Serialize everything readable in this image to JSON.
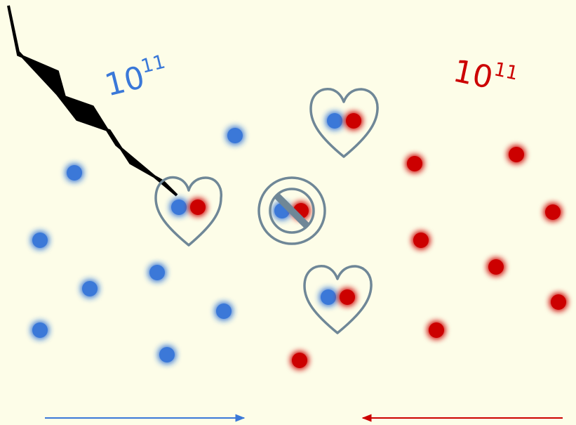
{
  "colors": {
    "background": "#fdfde8",
    "blue": "#3a78d8",
    "red": "#cc0000",
    "outline": "#6f8797",
    "needle": "#000000"
  },
  "labels": {
    "blue_count_base": "10",
    "blue_count_exp": "11",
    "red_count_base": "10",
    "red_count_exp": "11"
  },
  "icons": {
    "needle": "lightning-needle-icon",
    "heart": "heart-icon",
    "forbidden": "no-entry-icon"
  }
}
